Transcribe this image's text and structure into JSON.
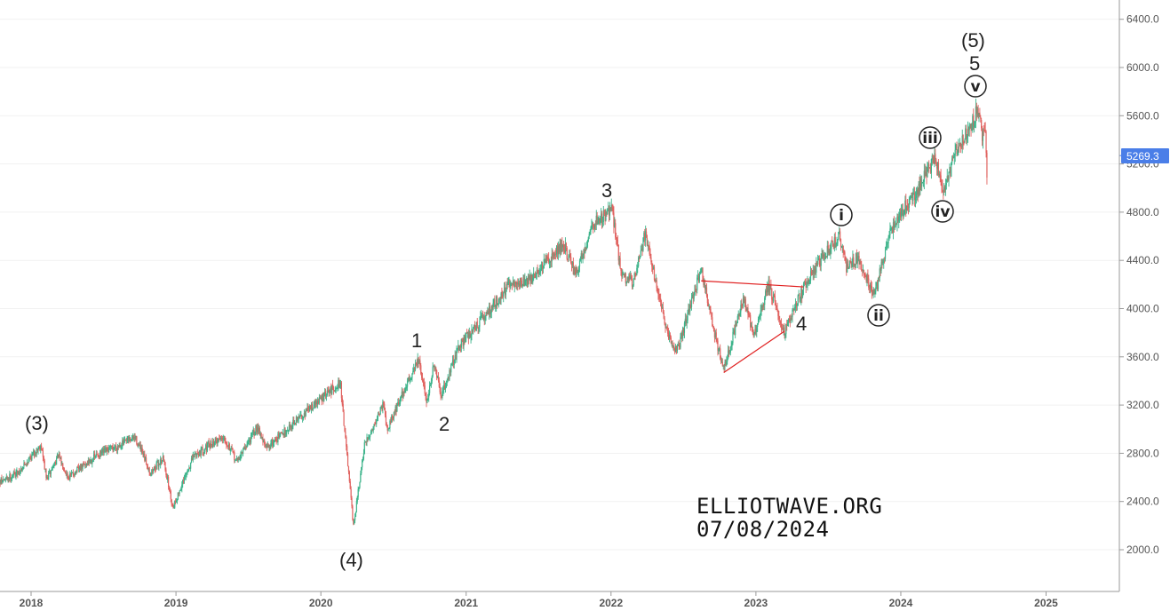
{
  "chart_data": {
    "type": "line",
    "instrument_style": "candlestick",
    "x_axis": {
      "type": "date",
      "range": [
        "2017-09-01",
        "2025-09-01"
      ],
      "ticks": [
        "2018",
        "2019",
        "2020",
        "2021",
        "2022",
        "2023",
        "2024",
        "2025"
      ]
    },
    "y_axis": {
      "position": "right",
      "range": [
        1700,
        6600
      ],
      "ticks": [
        "2000.0",
        "2400.0",
        "2800.0",
        "3200.0",
        "3600.0",
        "4000.0",
        "4400.0",
        "4800.0",
        "5200.0",
        "5600.0",
        "6000.0",
        "6400.0"
      ]
    },
    "colors": {
      "up": "#3cb38a",
      "down": "#e0615e",
      "trendline": "#e02020",
      "last_price_badge": "#4a7ee8"
    },
    "last_price": "5269.3",
    "series": [
      {
        "x": [
          "2017-09-01",
          "2017-10-15",
          "2017-12-01",
          "2018-01-26",
          "2018-02-09",
          "2018-03-10",
          "2018-04-05",
          "2018-06-15",
          "2018-09-20",
          "2018-10-29",
          "2018-11-30",
          "2018-12-24",
          "2019-02-15",
          "2019-05-01",
          "2019-06-03",
          "2019-07-26",
          "2019-08-15",
          "2019-10-01",
          "2019-11-15",
          "2020-01-15",
          "2020-02-19",
          "2020-03-23",
          "2020-04-20",
          "2020-06-08",
          "2020-06-15",
          "2020-09-02",
          "2020-09-24",
          "2020-10-12",
          "2020-10-30",
          "2020-12-15",
          "2021-02-15",
          "2021-04-15",
          "2021-06-15",
          "2021-09-02",
          "2021-10-04",
          "2021-11-15",
          "2022-01-04",
          "2022-01-27",
          "2022-02-24",
          "2022-03-29",
          "2022-05-20",
          "2022-06-16",
          "2022-08-16",
          "2022-09-15",
          "2022-10-12",
          "2022-11-30",
          "2022-12-28",
          "2023-02-02",
          "2023-03-13",
          "2023-05-01",
          "2023-06-15",
          "2023-07-31",
          "2023-08-18",
          "2023-09-15",
          "2023-10-27",
          "2023-11-30",
          "2023-12-29",
          "2024-02-15",
          "2024-03-28",
          "2024-04-19",
          "2024-05-21",
          "2024-06-20",
          "2024-07-16",
          "2024-07-25",
          "2024-08-01",
          "2024-08-05"
        ],
        "y": [
          2470,
          2560,
          2650,
          2872,
          2580,
          2780,
          2600,
          2780,
          2930,
          2640,
          2760,
          2350,
          2780,
          2945,
          2730,
          3025,
          2840,
          2980,
          3120,
          3290,
          3390,
          2190,
          2860,
          3230,
          3000,
          3580,
          3230,
          3530,
          3270,
          3700,
          3930,
          4180,
          4250,
          4540,
          4280,
          4700,
          4818,
          4280,
          4210,
          4630,
          3810,
          3640,
          4330,
          3850,
          3490,
          4080,
          3780,
          4195,
          3810,
          4170,
          4410,
          4600,
          4330,
          4430,
          4100,
          4590,
          4780,
          5000,
          5265,
          4960,
          5330,
          5490,
          5670,
          5400,
          5520,
          5100
        ]
      }
    ],
    "annotations": {
      "wave_3_paren": "(3)",
      "wave_4_paren": "(4)",
      "wave_5_paren": "(5)",
      "wave_1": "1",
      "wave_2": "2",
      "wave_3": "3",
      "wave_4": "4",
      "wave_5": "5",
      "minor_i": "i",
      "minor_ii": "ii",
      "minor_iii": "iii",
      "minor_iv": "iv",
      "minor_v": "v"
    },
    "triangle_trendlines": [
      {
        "from": {
          "x": "2022-08-16",
          "y": 4230
        },
        "to": {
          "x": "2023-05-01",
          "y": 4180
        }
      },
      {
        "from": {
          "x": "2022-10-12",
          "y": 3470
        },
        "to": {
          "x": "2023-03-13",
          "y": 3810
        }
      }
    ]
  },
  "watermark": {
    "line1": "ELLIOTWAVE.ORG",
    "line2": "07/08/2024"
  }
}
